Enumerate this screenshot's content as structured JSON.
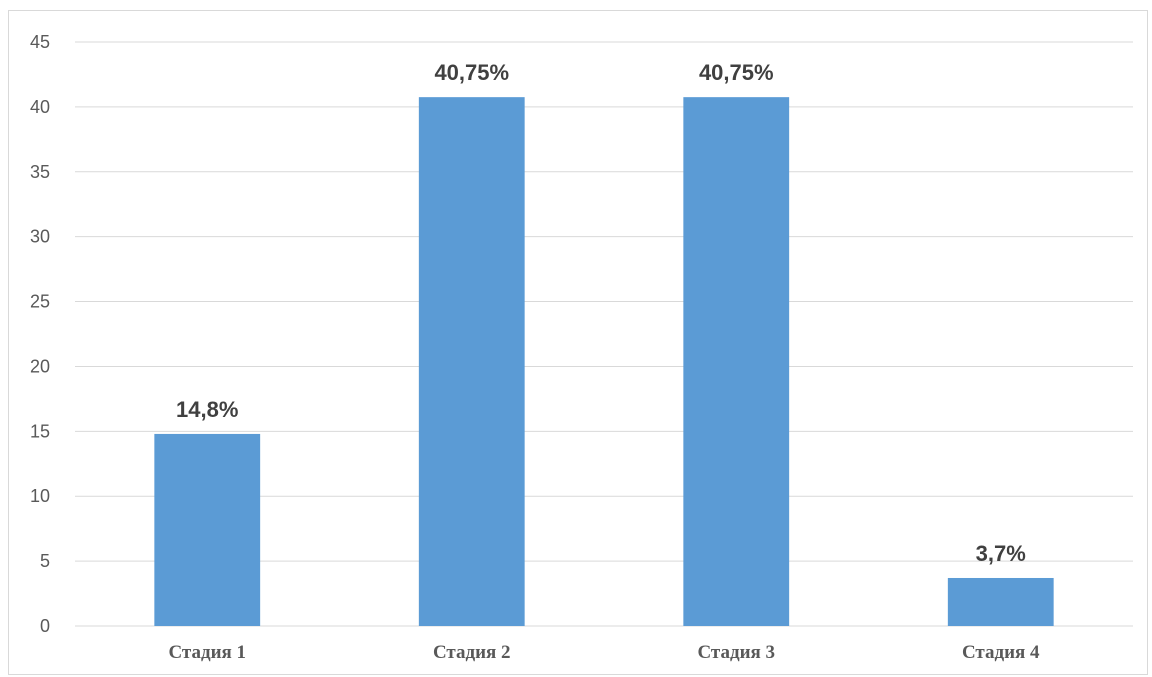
{
  "chart_data": {
    "type": "bar",
    "categories": [
      "Стадия 1",
      "Стадия 2",
      "Стадия 3",
      "Стадия  4"
    ],
    "values": [
      14.8,
      40.75,
      40.75,
      3.7
    ],
    "data_labels": [
      "14,8%",
      "40,75%",
      "40,75%",
      "3,7%"
    ],
    "yticks": [
      0,
      5,
      10,
      15,
      20,
      25,
      30,
      35,
      40,
      45
    ],
    "ylim": [
      0,
      45
    ],
    "grid": true,
    "legend": "none",
    "bar_color": "#5b9bd5",
    "grid_color": "#d9d9d9"
  }
}
